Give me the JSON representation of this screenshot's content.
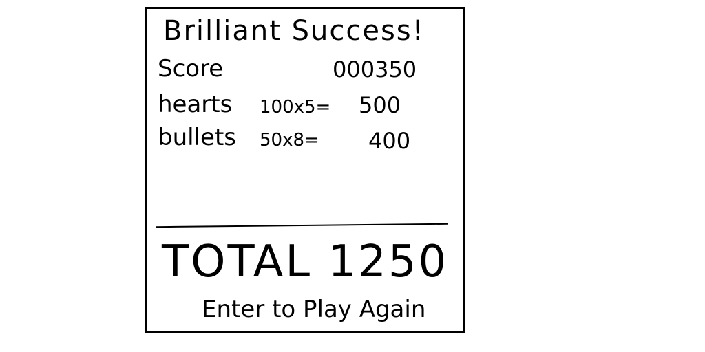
{
  "screen": {
    "title": "Brilliant Success!",
    "score": {
      "label": "Score",
      "value": "000350"
    },
    "hearts": {
      "label": "hearts",
      "multiplier": "100x5=",
      "value": "500"
    },
    "bullets": {
      "label": "bullets",
      "multiplier": "50x8=",
      "value": "400"
    },
    "total": "TOTAL 1250",
    "prompt": "Enter to Play Again"
  }
}
